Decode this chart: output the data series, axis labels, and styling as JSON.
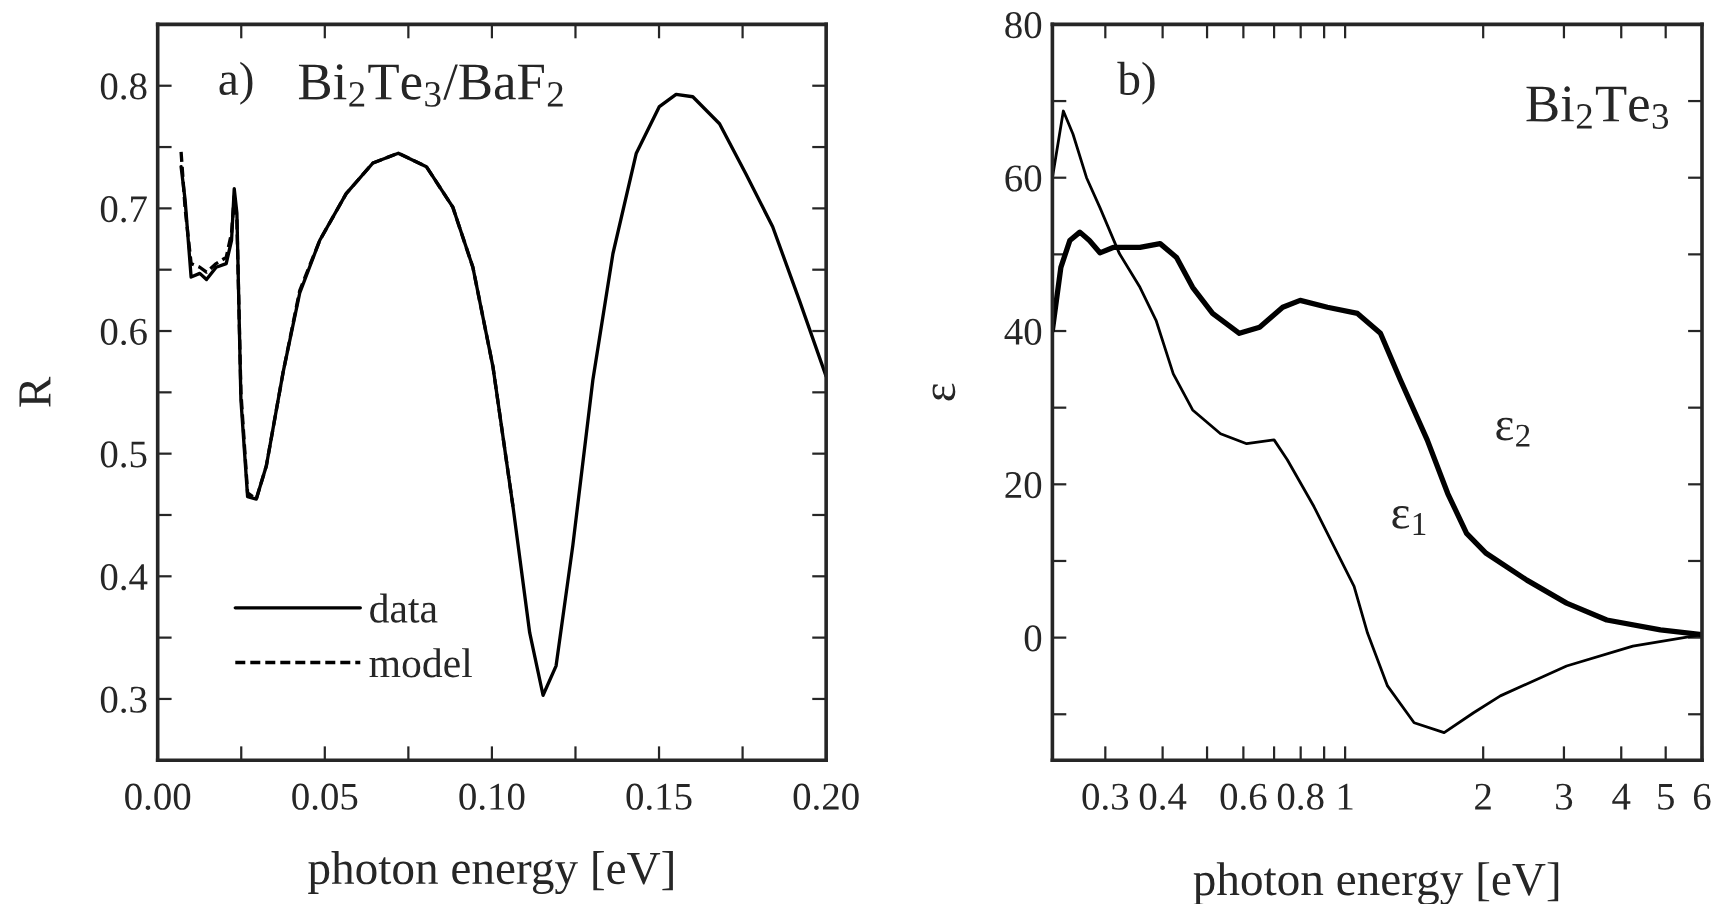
{
  "chart_data": [
    {
      "type": "line",
      "xlabel": "photon energy [eV]",
      "ylabel": "R",
      "annotations": [
        "a)",
        "Bi$_{2}$Te$_{3}$/BaF$_{2}$"
      ],
      "xlim": [
        0,
        0.2
      ],
      "ylim": [
        0.25,
        0.85
      ],
      "xticks": [
        {
          "value": 0,
          "label": "0.00"
        },
        {
          "value": 0.025,
          "label": null
        },
        {
          "value": 0.05,
          "label": "0.05"
        },
        {
          "value": 0.075,
          "label": null
        },
        {
          "value": 0.1,
          "label": "0.10"
        },
        {
          "value": 0.125,
          "label": null
        },
        {
          "value": 0.15,
          "label": "0.15"
        },
        {
          "value": 0.175,
          "label": null
        },
        {
          "value": 0.2,
          "label": "0.20"
        }
      ],
      "yticks": [
        {
          "value": 0.25,
          "label": null
        },
        0.3,
        {
          "value": 0.35,
          "label": null
        },
        0.4,
        {
          "value": 0.45,
          "label": null
        },
        0.5,
        {
          "value": 0.55,
          "label": null
        },
        0.6,
        {
          "value": 0.65,
          "label": null
        },
        0.7,
        {
          "value": 0.75,
          "label": null
        },
        0.8,
        {
          "value": 0.85,
          "label": null
        }
      ],
      "legend": "bottom left",
      "grid": false,
      "marker": "none",
      "series": [
        {
          "name": "data",
          "color": "#000000",
          "line_style": "solid",
          "x": [
            0.007,
            0.0082,
            0.01,
            0.0126,
            0.0146,
            0.0175,
            0.0205,
            0.0221,
            0.0229,
            0.0237,
            0.0249,
            0.0269,
            0.0295,
            0.0325,
            0.0375,
            0.0425,
            0.0485,
            0.0564,
            0.0644,
            0.072,
            0.0804,
            0.0883,
            0.0943,
            0.1003,
            0.1063,
            0.1113,
            0.1153,
            0.1192,
            0.1242,
            0.1302,
            0.1362,
            0.1432,
            0.1501,
            0.1551,
            0.1601,
            0.1681,
            0.176,
            0.184,
            0.192,
            0.2
          ],
          "values": [
            0.734,
            0.707,
            0.644,
            0.647,
            0.642,
            0.652,
            0.655,
            0.674,
            0.716,
            0.696,
            0.544,
            0.465,
            0.463,
            0.49,
            0.566,
            0.631,
            0.674,
            0.712,
            0.737,
            0.745,
            0.734,
            0.701,
            0.652,
            0.571,
            0.457,
            0.354,
            0.303,
            0.327,
            0.425,
            0.56,
            0.663,
            0.745,
            0.783,
            0.793,
            0.791,
            0.769,
            0.728,
            0.685,
            0.625,
            0.563
          ]
        },
        {
          "name": "model",
          "color": "#000000",
          "line_style": "dashed",
          "x": [
            0.007,
            0.0082,
            0.01,
            0.0126,
            0.0146,
            0.0175,
            0.0205,
            0.0221,
            0.0229,
            0.0237,
            0.0249,
            0.0269,
            0.0295,
            0.0325,
            0.0375,
            0.0425,
            0.0485,
            0.0564,
            0.0644,
            0.072,
            0.0804,
            0.0883,
            0.0943,
            0.1003,
            0.1063
          ],
          "values": [
            0.746,
            0.7,
            0.655,
            0.652,
            0.648,
            0.655,
            0.66,
            0.68,
            0.71,
            0.69,
            0.55,
            0.468,
            0.463,
            0.49,
            0.566,
            0.633,
            0.674,
            0.712,
            0.737,
            0.745,
            0.734,
            0.701,
            0.652,
            0.571,
            0.457
          ]
        }
      ]
    },
    {
      "type": "line",
      "xlabel": "photon energy [eV]",
      "ylabel": "ε",
      "log": "x",
      "annotations": [
        "b)",
        "Bi$_{2}$Te$_{3}$",
        "ε$_{1}$",
        "ε$_{2}$"
      ],
      "xlim": [
        0.23,
        6
      ],
      "ylim": [
        -16,
        80
      ],
      "xticks": [
        0.3,
        0.4,
        {
          "value": 0.5,
          "label": null
        },
        0.6,
        {
          "value": 0.7,
          "label": null
        },
        0.8,
        {
          "value": 0.9,
          "label": null
        },
        1,
        2,
        3,
        4,
        5,
        6
      ],
      "yticks": [
        {
          "value": -10,
          "label": null
        },
        0,
        {
          "value": 10,
          "label": null
        },
        20,
        {
          "value": 30,
          "label": null
        },
        40,
        {
          "value": 50,
          "label": null
        },
        60,
        {
          "value": 70,
          "label": null
        },
        80
      ],
      "grid": false,
      "marker": "none",
      "series": [
        {
          "color": "#000000",
          "line_style": "solid",
          "x": [
            0.23,
            0.243,
            0.255,
            0.273,
            0.292,
            0.322,
            0.357,
            0.387,
            0.422,
            0.465,
            0.535,
            0.61,
            0.7,
            0.748,
            0.855,
            0.977,
            1.046,
            1.119,
            1.237,
            1.414,
            1.644,
            1.906,
            2.18,
            3.04,
            4.24,
            6.0
          ],
          "values": [
            60.0,
            68.7,
            65.7,
            60.0,
            56.1,
            50.1,
            45.7,
            41.4,
            34.4,
            29.7,
            26.6,
            25.3,
            25.8,
            23.2,
            17.1,
            10.2,
            6.7,
            0.6,
            -6.3,
            -11.1,
            -12.4,
            -9.8,
            -7.6,
            -3.7,
            -1.1,
            0.4
          ]
        },
        {
          "color": "#000000",
          "line_style": "solid",
          "x": [
            0.23,
            0.24,
            0.251,
            0.264,
            0.277,
            0.292,
            0.312,
            0.357,
            0.395,
            0.429,
            0.465,
            0.514,
            0.588,
            0.651,
            0.731,
            0.798,
            0.915,
            1.064,
            1.194,
            1.32,
            1.51,
            1.674,
            1.84,
            2.03,
            2.49,
            3.04,
            3.72,
            4.87,
            6.0
          ],
          "values": [
            40.1,
            48.3,
            51.8,
            52.9,
            51.8,
            50.2,
            50.9,
            50.9,
            51.4,
            49.6,
            45.7,
            42.3,
            39.7,
            40.5,
            43.1,
            44.0,
            43.1,
            42.3,
            39.7,
            33.6,
            25.8,
            18.8,
            13.6,
            11.0,
            7.5,
            4.5,
            2.3,
            1.0,
            0.4
          ]
        }
      ]
    }
  ]
}
